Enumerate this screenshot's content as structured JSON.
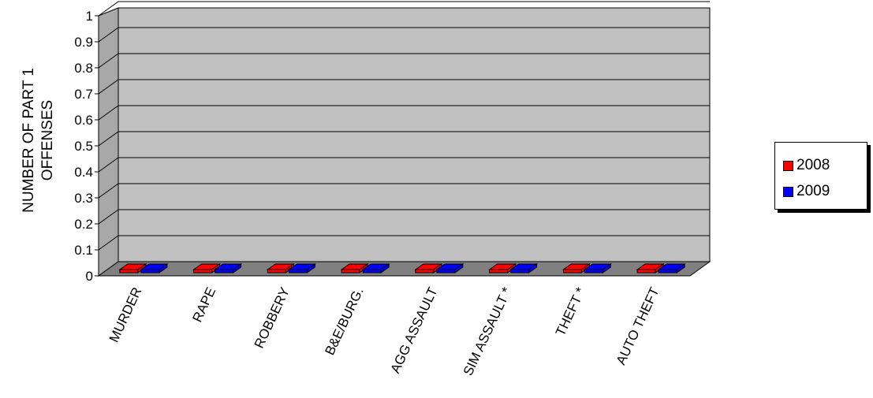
{
  "chart_data": {
    "type": "bar",
    "title": "",
    "xlabel": "",
    "ylabel": "NUMBER OF PART 1 OFFENSES",
    "ylabel_lines": [
      "NUMBER OF PART 1",
      "OFFENSES"
    ],
    "categories": [
      "MURDER",
      "RAPE",
      "ROBBERY",
      "B&E/BURG.",
      "AGG ASSAULT",
      "SIM ASSAULT *",
      "THEFT *",
      "AUTO THEFT"
    ],
    "series": [
      {
        "name": "2008",
        "values": [
          0,
          0,
          0,
          0,
          0,
          0,
          0,
          0
        ],
        "color": "#ff0000"
      },
      {
        "name": "2009",
        "values": [
          0,
          0,
          0,
          0,
          0,
          0,
          0,
          0
        ],
        "color": "#0000ff"
      }
    ],
    "ylim": [
      0,
      1
    ],
    "yticks": [
      "0",
      "0.1",
      "0.2",
      "0.3",
      "0.4",
      "0.5",
      "0.6",
      "0.7",
      "0.8",
      "0.9",
      "1"
    ],
    "grid": true,
    "style": "3d",
    "wall_color": "#c0c0c0",
    "legend_position": "right"
  },
  "legend": {
    "items": [
      {
        "label": "2008",
        "color": "#ff0000"
      },
      {
        "label": "2009",
        "color": "#0000ff"
      }
    ]
  }
}
